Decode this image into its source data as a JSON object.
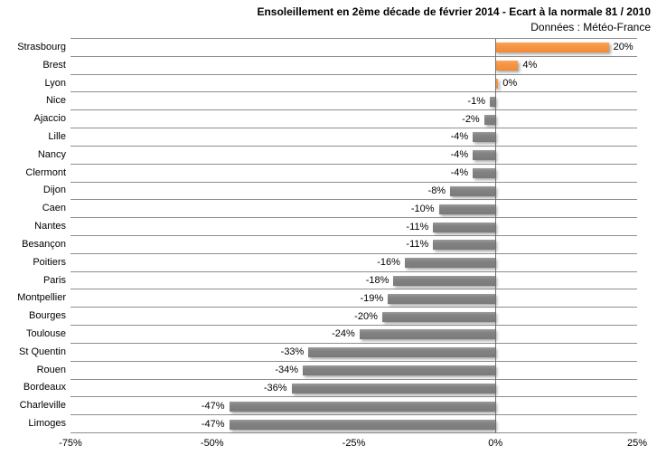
{
  "chart_data": {
    "type": "bar",
    "orientation": "horizontal",
    "title": "Ensoleillement en 2ème décade de février 2014 - Ecart à la normale 81 / 2010",
    "subtitle": "Données : Météo-France",
    "categories": [
      "Strasbourg",
      "Brest",
      "Lyon",
      "Nice",
      "Ajaccio",
      "Lille",
      "Nancy",
      "Clermont",
      "Dijon",
      "Caen",
      "Nantes",
      "Besançon",
      "Poitiers",
      "Paris",
      "Montpellier",
      "Bourges",
      "Toulouse",
      "St Quentin",
      "Rouen",
      "Bordeaux",
      "Charleville",
      "Limoges"
    ],
    "values": [
      20,
      4,
      0,
      -1,
      -2,
      -4,
      -4,
      -4,
      -8,
      -10,
      -11,
      -11,
      -16,
      -18,
      -19,
      -20,
      -24,
      -33,
      -34,
      -36,
      -47,
      -47
    ],
    "data_labels": [
      "20%",
      "4%",
      "0%",
      "-1%",
      "-2%",
      "-4%",
      "-4%",
      "-4%",
      "-8%",
      "-10%",
      "-11%",
      "-11%",
      "-16%",
      "-18%",
      "-19%",
      "-20%",
      "-24%",
      "-33%",
      "-34%",
      "-36%",
      "-47%",
      "-47%"
    ],
    "x_ticks": [
      "-75%",
      "-50%",
      "-25%",
      "0%",
      "25%"
    ],
    "x_tick_values": [
      -75,
      -50,
      -25,
      0,
      25
    ],
    "xlim": [
      -75,
      25
    ],
    "legend": "none",
    "grid": "horizontal category separators",
    "colors": {
      "positive_bar": "#F79646",
      "negative_bar": "#808080",
      "gridline": "#8E8E8E",
      "zero_line": "#6F6F6F",
      "text": "#000000",
      "background": "#FFFFFF"
    }
  }
}
